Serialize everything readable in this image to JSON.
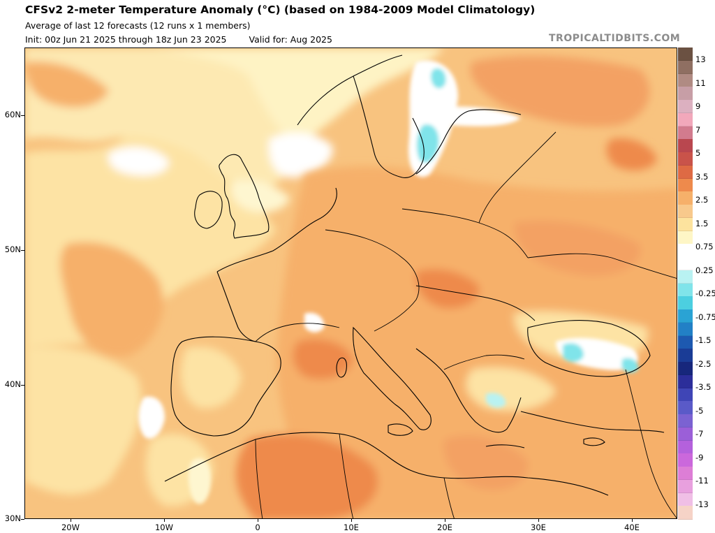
{
  "header": {
    "title": "CFSv2 2-meter Temperature Anomaly (°C) (based on 1984-2009 Model Climatology)",
    "subtitle": "Average of last 12 forecasts (12 runs x 1 members)",
    "init": "Init: 00z Jun 21 2025 through 18z Jun 23 2025",
    "valid": "Valid for: Aug 2025",
    "brand": "TROPICALTIDBITS.COM"
  },
  "map": {
    "background_color": "#f8c37f",
    "latitude_labels": [
      "60N",
      "50N",
      "40N",
      "30N"
    ],
    "longitude_labels": [
      "20W",
      "10W",
      "0",
      "10E",
      "20E",
      "30E",
      "40E"
    ],
    "extent": {
      "lon_min": -25,
      "lon_max": 45,
      "lat_min": 30,
      "lat_max": 65
    },
    "regions": {
      "atlantic": "Atlantic Ocean",
      "mediterranean": "Mediterranean Sea",
      "black_sea": "Black Sea",
      "baltic": "Baltic Sea"
    }
  },
  "colorbar": {
    "labels": [
      "13",
      "11",
      "9",
      "7",
      "5",
      "3.5",
      "2.5",
      "1.5",
      "0.75",
      "0.25",
      "-0.25",
      "-0.75",
      "-1.5",
      "-2.5",
      "-3.5",
      "-5",
      "-7",
      "-9",
      "-11",
      "-13"
    ],
    "colors": [
      "#6b5142",
      "#8f6f62",
      "#b08b83",
      "#c79ea6",
      "#dcb0c0",
      "#f2a8bb",
      "#d27b8e",
      "#b9474f",
      "#c9534a",
      "#de6a44",
      "#ee8a4c",
      "#f6b06a",
      "#f8c98c",
      "#fde39e",
      "#fef6c6",
      "#ffffff",
      "#ffffff",
      "#b9f2f2",
      "#80e4ea",
      "#4ccfe0",
      "#2aa3d4",
      "#2280c6",
      "#1d59b0",
      "#1a3c96",
      "#17277c",
      "#2c2e9a",
      "#3f45b6",
      "#5a5ac8",
      "#7b62d2",
      "#9b5fd8",
      "#b461dc",
      "#cb68dc",
      "#dd7ed6",
      "#e8a0de",
      "#f0bfe6",
      "#f6d3c7"
    ]
  }
}
